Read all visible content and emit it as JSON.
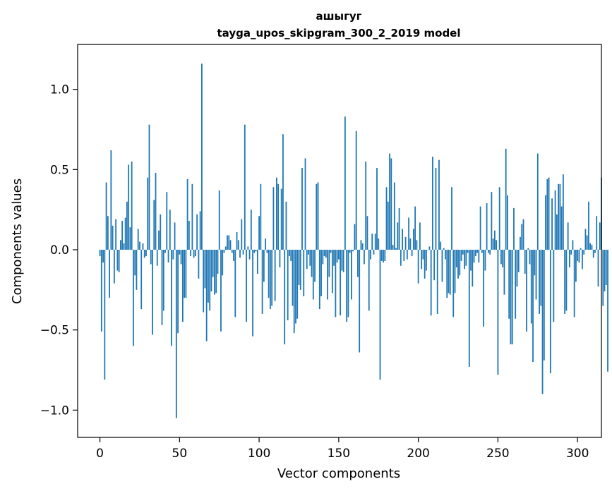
{
  "chart_data": {
    "type": "bar",
    "title_line1": "ашыгуг",
    "title_line2": "tayga_upos_skipgram_300_2_2019 model",
    "xlabel": "Vector components",
    "ylabel": "Components values",
    "xlim": [
      -14,
      315
    ],
    "ylim": [
      -1.17,
      1.28
    ],
    "xticks": [
      0,
      50,
      100,
      150,
      200,
      250,
      300
    ],
    "xtick_labels": [
      "0",
      "50",
      "100",
      "150",
      "200",
      "250",
      "300"
    ],
    "yticks": [
      -1.0,
      -0.5,
      0.0,
      0.5,
      1.0
    ],
    "ytick_labels": [
      "−1.0",
      "−0.5",
      "0.0",
      "0.5",
      "1.0"
    ],
    "bar_color": "#1f77b4",
    "grid": false,
    "values": [
      -0.04,
      -0.51,
      -0.08,
      -0.81,
      0.42,
      0.21,
      -0.3,
      0.62,
      0.15,
      -0.21,
      0.19,
      -0.13,
      -0.14,
      0.06,
      0.18,
      0.04,
      0.2,
      0.3,
      0.53,
      0.14,
      0.55,
      -0.6,
      -0.16,
      -0.25,
      0.13,
      0.05,
      -0.37,
      0.04,
      -0.05,
      -0.04,
      0.45,
      0.78,
      -0.09,
      -0.53,
      0.31,
      0.48,
      -0.1,
      0.12,
      0.22,
      -0.47,
      -0.38,
      -0.02,
      0.36,
      -0.08,
      0.25,
      -0.6,
      -0.06,
      0.17,
      -1.05,
      -0.52,
      -0.03,
      -0.09,
      -0.45,
      -0.3,
      -0.3,
      0.44,
      0.18,
      -0.04,
      0.41,
      -0.05,
      -0.04,
      0.22,
      -0.18,
      0.24,
      1.16,
      -0.39,
      -0.24,
      -0.57,
      -0.33,
      -0.38,
      -0.26,
      -0.17,
      -0.28,
      -0.27,
      -0.15,
      0.37,
      -0.51,
      -0.16,
      -0.02,
      0.02,
      0.09,
      0.09,
      0.06,
      -0.02,
      -0.07,
      -0.42,
      0.11,
      0.06,
      -0.05,
      0.19,
      -0.03,
      0.78,
      -0.45,
      0.02,
      -0.06,
      0.25,
      -0.54,
      -0.02,
      -0.01,
      -0.15,
      0.21,
      0.41,
      -0.4,
      -0.2,
      0.07,
      -0.02,
      -0.3,
      -0.37,
      -0.35,
      0.39,
      -0.32,
      0.45,
      0.41,
      -0.11,
      0.38,
      0.72,
      -0.59,
      0.3,
      -0.44,
      -0.04,
      -0.07,
      -0.35,
      -0.52,
      -0.46,
      -0.43,
      -0.22,
      -0.25,
      0.51,
      -0.29,
      0.57,
      -0.12,
      -0.03,
      -0.1,
      -0.17,
      -0.31,
      -0.2,
      0.41,
      0.42,
      -0.37,
      -0.29,
      -0.09,
      -0.04,
      -0.05,
      -0.31,
      -0.17,
      -0.02,
      -0.27,
      -0.1,
      -0.42,
      -0.08,
      -0.06,
      -0.41,
      -0.13,
      -0.14,
      0.83,
      -0.45,
      -0.42,
      -0.02,
      -0.31,
      -0.01,
      0.16,
      0.74,
      -0.17,
      -0.64,
      0.06,
      0.04,
      -0.09,
      0.55,
      0.21,
      -0.38,
      -0.06,
      0.1,
      -0.03,
      0.1,
      0.51,
      0.07,
      -0.81,
      -0.07,
      -0.08,
      -0.07,
      0.39,
      0.3,
      0.6,
      0.57,
      0.03,
      0.42,
      0.01,
      0.17,
      0.26,
      -0.1,
      0.13,
      -0.07,
      0.08,
      -0.06,
      0.2,
      0.07,
      -0.04,
      0.13,
      0.27,
      0.06,
      -0.21,
      0.17,
      -0.12,
      -0.06,
      -0.18,
      -0.13,
      0.0,
      0.02,
      -0.41,
      0.58,
      -0.19,
      0.51,
      -0.4,
      0.56,
      0.05,
      -0.2,
      0.01,
      -0.06,
      -0.3,
      -0.27,
      -0.28,
      0.39,
      -0.42,
      -0.27,
      -0.11,
      -0.18,
      -0.16,
      -0.07,
      -0.03,
      -0.12,
      -0.1,
      -0.02,
      -0.73,
      -0.13,
      -0.23,
      -0.08,
      -0.04,
      -0.02,
      -0.08,
      0.27,
      -0.02,
      -0.48,
      -0.13,
      0.29,
      -0.02,
      -0.03,
      0.36,
      0.07,
      0.12,
      0.06,
      -0.78,
      0.39,
      -0.09,
      -0.11,
      -0.28,
      0.63,
      0.34,
      -0.43,
      -0.59,
      -0.59,
      0.26,
      -0.43,
      -0.23,
      -0.14,
      0.08,
      0.16,
      0.19,
      -0.15,
      -0.51,
      0.01,
      -0.09,
      -0.46,
      -0.7,
      -0.16,
      -0.31,
      0.6,
      -0.4,
      -0.35,
      -0.9,
      -0.69,
      0.34,
      0.44,
      0.45,
      -0.77,
      0.32,
      -0.45,
      0.37,
      0.22,
      0.41,
      0.41,
      0.27,
      0.47,
      -0.4,
      -0.38,
      0.17,
      -0.11,
      -0.03,
      0.06,
      -0.42,
      -0.2,
      -0.07,
      -0.08,
      0.01,
      -0.12,
      -0.03,
      0.13,
      0.09,
      0.3,
      0.04,
      0.03,
      -0.05,
      -0.02,
      0.21,
      -0.23,
      0.17,
      0.45,
      -0.35,
      -0.26,
      -0.22,
      -0.76
    ]
  }
}
